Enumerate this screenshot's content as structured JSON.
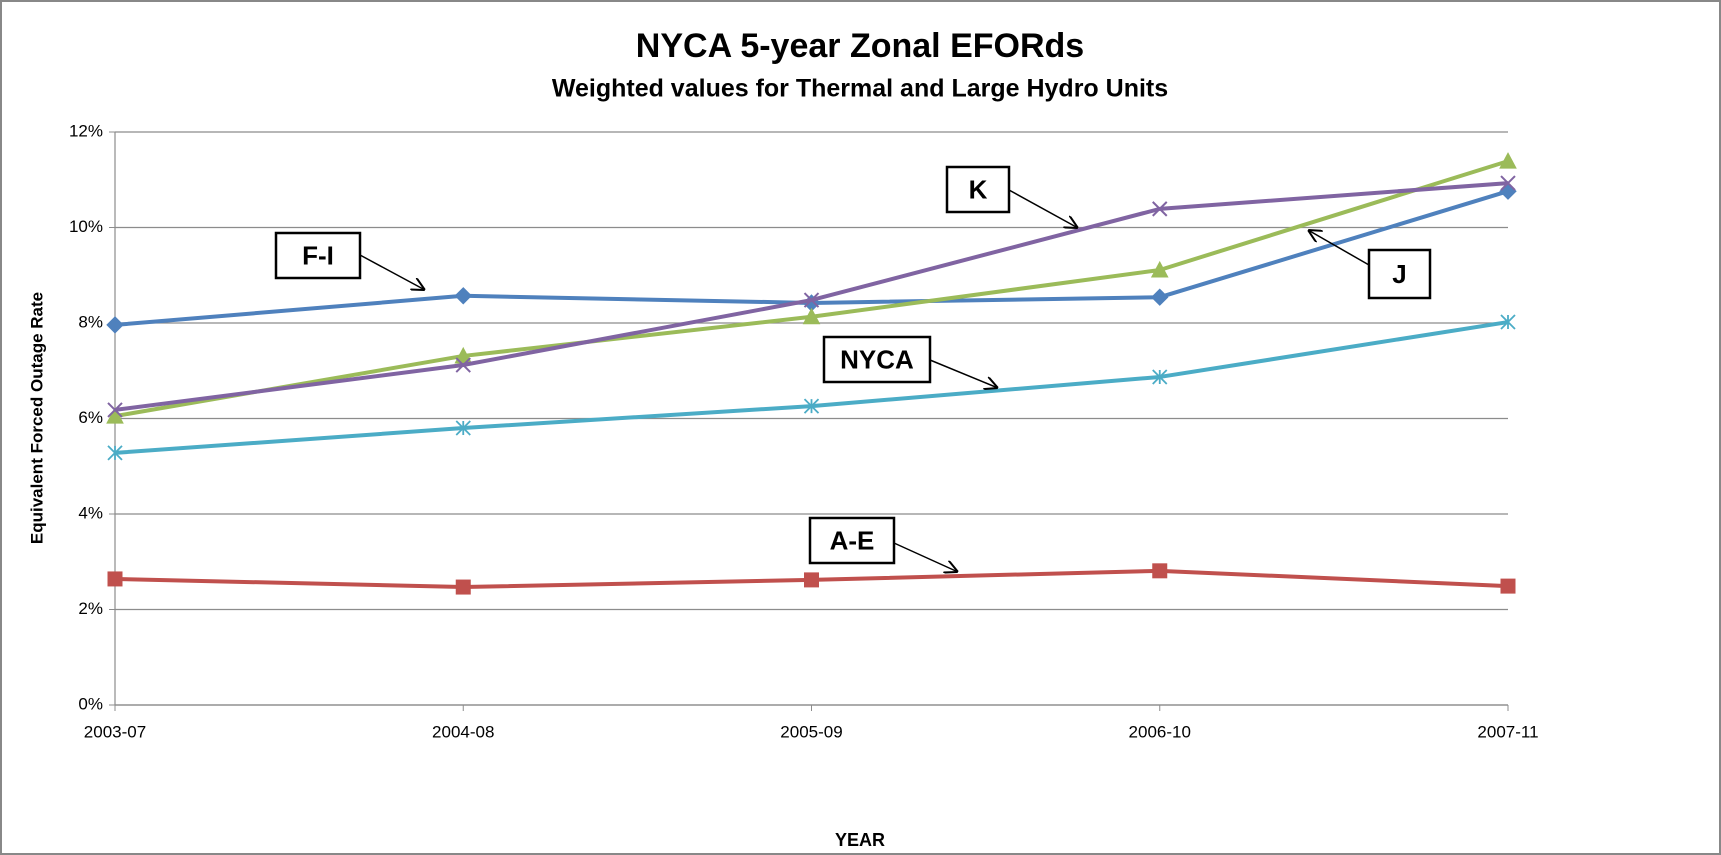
{
  "chart_data": {
    "type": "line",
    "title": "NYCA 5-year Zonal EFORds",
    "subtitle": "Weighted values for Thermal and Large Hydro Units",
    "x_label": "YEAR",
    "y_label": "Equivalent  Forced Outage Rate",
    "categories": [
      "2003-07",
      "2004-08",
      "2005-09",
      "2006-10",
      "2007-11"
    ],
    "series": [
      {
        "name": "A-E",
        "color": "#c0504d",
        "marker": "square",
        "values": [
          2.64,
          2.47,
          2.62,
          2.81,
          2.49
        ]
      },
      {
        "name": "F-I",
        "color": "#4f81bd",
        "marker": "diamond",
        "values": [
          7.96,
          8.57,
          8.42,
          8.54,
          10.76
        ]
      },
      {
        "name": "J",
        "color": "#9bbb59",
        "marker": "triangle",
        "values": [
          6.05,
          7.31,
          8.13,
          9.11,
          11.39
        ]
      },
      {
        "name": "K",
        "color": "#8064a2",
        "marker": "x",
        "values": [
          6.18,
          7.12,
          8.48,
          10.39,
          10.93
        ]
      },
      {
        "name": "NYCA",
        "color": "#4bacc6",
        "marker": "star",
        "values": [
          5.28,
          5.8,
          6.26,
          6.87,
          8.02
        ]
      }
    ],
    "ylim": [
      0,
      12
    ],
    "yticks": [
      {
        "value": 0,
        "label": "0%"
      },
      {
        "value": 2,
        "label": "2%"
      },
      {
        "value": 4,
        "label": "4%"
      },
      {
        "value": 6,
        "label": "6%"
      },
      {
        "value": 8,
        "label": "8%"
      },
      {
        "value": 10,
        "label": "10%"
      },
      {
        "value": 12,
        "label": "12%"
      }
    ],
    "grid": true
  }
}
